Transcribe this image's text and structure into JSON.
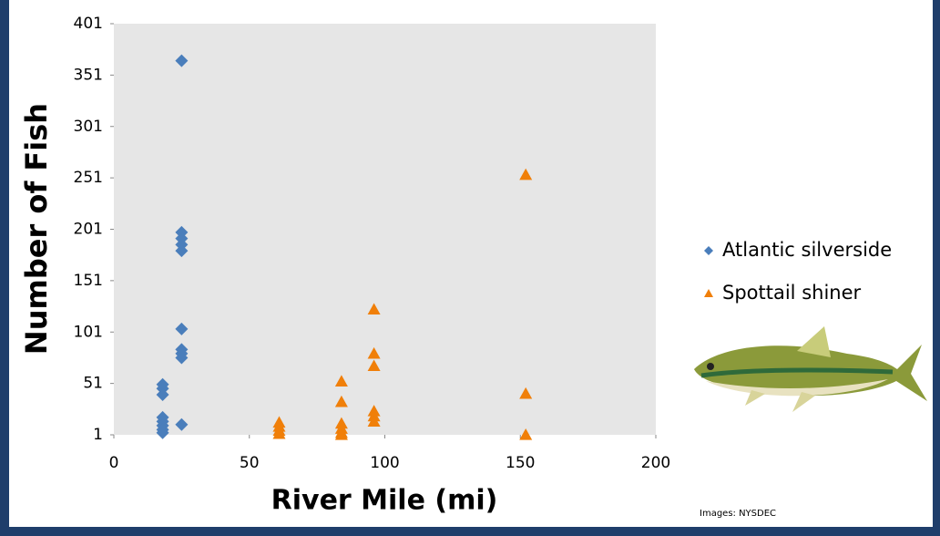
{
  "chart_data": {
    "type": "scatter",
    "xlabel": "River Mile (mi)",
    "ylabel": "Number of Fish",
    "annotation": "Images: NYSDEC",
    "xlim": [
      0,
      200
    ],
    "xticks": [
      0,
      50,
      100,
      150,
      200
    ],
    "ylim": [
      1,
      401
    ],
    "yticks": [
      1,
      51,
      101,
      151,
      201,
      251,
      301,
      351,
      401
    ],
    "legend": "right",
    "series": [
      {
        "name": "Atlantic silverside",
        "color": "#4a7ebb",
        "marker": "diamond",
        "x": [
          18,
          18,
          18,
          18,
          18,
          18,
          18,
          18,
          25,
          25,
          25,
          25,
          25,
          25,
          25,
          25,
          25,
          25
        ],
        "values": [
          50,
          46,
          40,
          18,
          14,
          10,
          6,
          3,
          365,
          198,
          192,
          186,
          180,
          104,
          84,
          80,
          76,
          11
        ]
      },
      {
        "name": "Spottail shiner",
        "color": "#f07f09",
        "marker": "triangle",
        "x": [
          61,
          61,
          61,
          61,
          84,
          84,
          84,
          84,
          84,
          84,
          96,
          96,
          96,
          96,
          96,
          96,
          152,
          152,
          152
        ],
        "values": [
          13,
          9,
          5,
          2,
          53,
          33,
          12,
          7,
          3,
          1,
          123,
          80,
          68,
          24,
          19,
          14,
          254,
          41,
          1
        ]
      }
    ]
  }
}
